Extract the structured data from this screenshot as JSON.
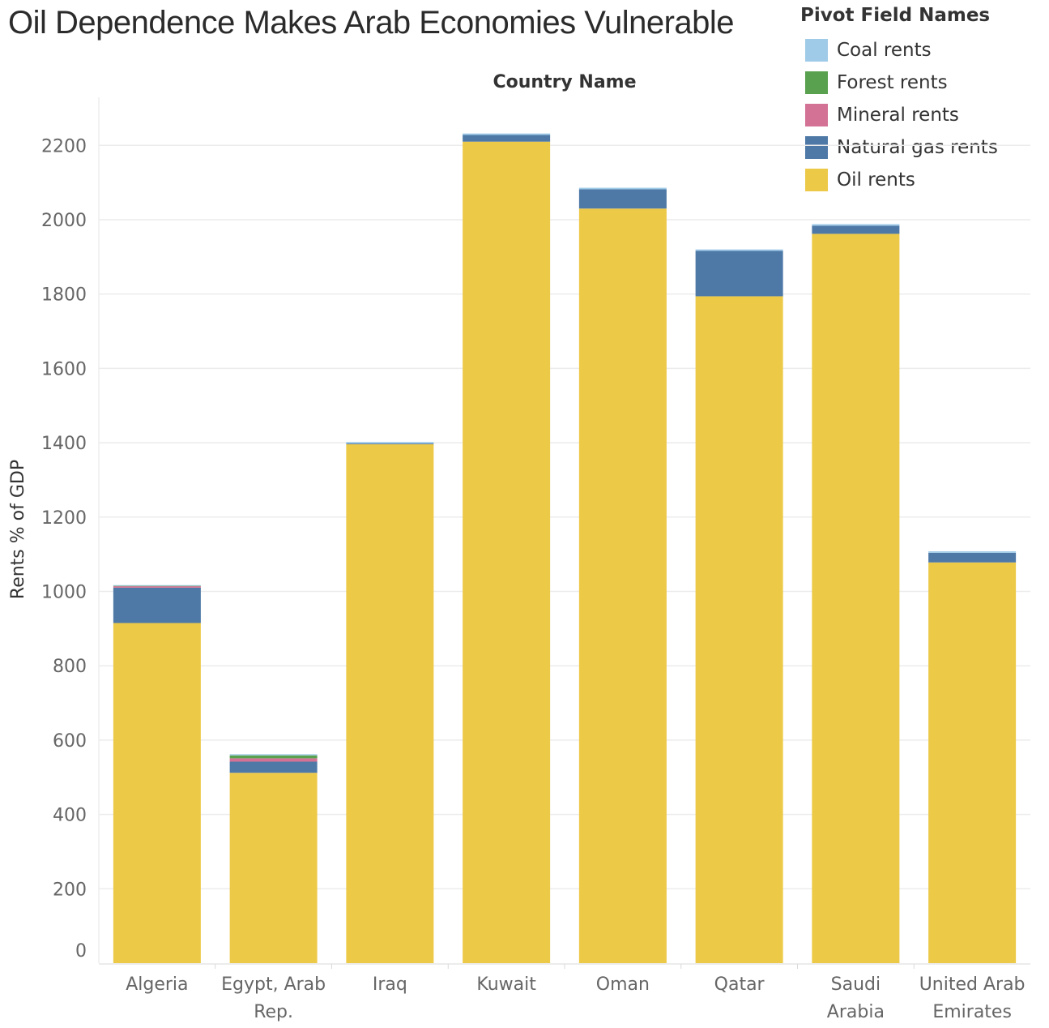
{
  "title": "Oil Dependence Makes Arab Economies Vulnerable",
  "legend": {
    "title": "Pivot Field Names",
    "items": [
      {
        "label": "Coal rents",
        "color": "#a0cbe8"
      },
      {
        "label": "Forest rents",
        "color": "#59a14f"
      },
      {
        "label": "Mineral rents",
        "color": "#d37295"
      },
      {
        "label": "Natural gas rents",
        "color": "#4e79a7"
      },
      {
        "label": "Oil rents",
        "color": "#edc948"
      }
    ]
  },
  "chart_data": {
    "type": "bar",
    "stacked": true,
    "title": "Oil Dependence Makes Arab Economies Vulnerable",
    "column_header": "Country Name",
    "ylabel": "Rents % of GDP",
    "ylim": [
      0,
      2340
    ],
    "yticks": [
      0,
      200,
      400,
      600,
      800,
      1000,
      1200,
      1400,
      1600,
      1800,
      2000,
      2200
    ],
    "grid": true,
    "legend_position": "top-right",
    "categories": [
      [
        "Algeria"
      ],
      [
        "Egypt, Arab",
        "Rep."
      ],
      [
        "Iraq"
      ],
      [
        "Kuwait"
      ],
      [
        "Oman"
      ],
      [
        "Qatar"
      ],
      [
        "Saudi",
        "Arabia"
      ],
      [
        "United Arab",
        "Emirates"
      ]
    ],
    "series": [
      {
        "name": "Oil rents",
        "color": "#edc948",
        "values": [
          915,
          512,
          1396,
          2210,
          2030,
          1794,
          1962,
          1078
        ]
      },
      {
        "name": "Natural gas rents",
        "color": "#4e79a7",
        "values": [
          95,
          30,
          2,
          18,
          52,
          122,
          22,
          26
        ]
      },
      {
        "name": "Mineral rents",
        "color": "#d37295",
        "values": [
          4,
          9,
          0,
          0,
          0,
          0,
          0,
          0
        ]
      },
      {
        "name": "Forest rents",
        "color": "#59a14f",
        "values": [
          1,
          8,
          0,
          0,
          0,
          0,
          0,
          0
        ]
      },
      {
        "name": "Coal rents",
        "color": "#a0cbe8",
        "values": [
          2,
          3,
          4,
          4,
          4,
          4,
          4,
          4
        ]
      }
    ]
  }
}
